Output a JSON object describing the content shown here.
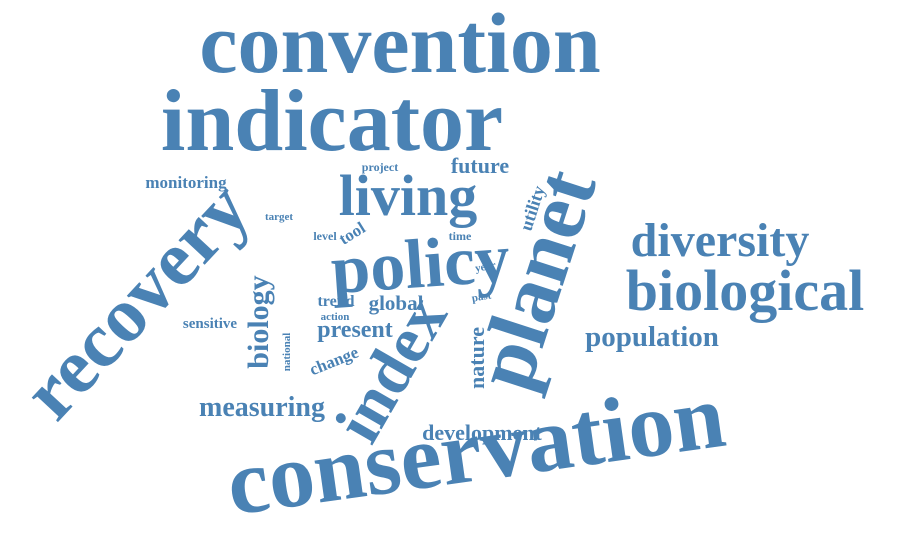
{
  "colors": {
    "word": "#4a82b4",
    "background": "#ffffff"
  },
  "words": [
    {
      "text": "convention"
    },
    {
      "text": "indicator"
    },
    {
      "text": "conservation"
    },
    {
      "text": "recovery"
    },
    {
      "text": "planet"
    },
    {
      "text": "policy"
    },
    {
      "text": "index"
    },
    {
      "text": "living"
    },
    {
      "text": "biological"
    },
    {
      "text": "diversity"
    },
    {
      "text": "population"
    },
    {
      "text": "measuring"
    },
    {
      "text": "development"
    },
    {
      "text": "biology"
    },
    {
      "text": "monitoring"
    },
    {
      "text": "future"
    },
    {
      "text": "present"
    },
    {
      "text": "global"
    },
    {
      "text": "utility"
    },
    {
      "text": "nature"
    },
    {
      "text": "sensitive"
    },
    {
      "text": "change"
    },
    {
      "text": "trend"
    },
    {
      "text": "tool"
    },
    {
      "text": "project"
    },
    {
      "text": "target"
    },
    {
      "text": "level"
    },
    {
      "text": "time"
    },
    {
      "text": "year"
    },
    {
      "text": "past"
    },
    {
      "text": "action"
    },
    {
      "text": "national"
    }
  ]
}
